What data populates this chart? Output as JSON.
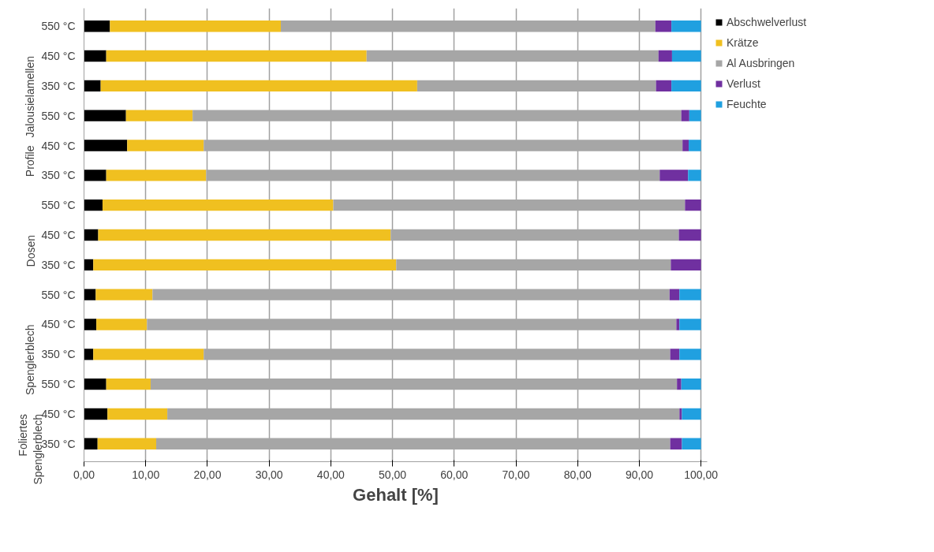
{
  "chart_data": {
    "type": "bar",
    "orientation": "horizontal",
    "stacked": true,
    "xlabel": "Gehalt [%]",
    "categories": [
      "550 °C",
      "450 °C",
      "350 °C",
      "550 °C",
      "450 °C",
      "350 °C",
      "550 °C",
      "450 °C",
      "350 °C",
      "550 °C",
      "450 °C",
      "350 °C",
      "550 °C",
      "450 °C",
      "350 °C"
    ],
    "annotations": [
      "Jalousielamellen",
      "Profile",
      "Dosen",
      "Spenglerblech",
      "Foliertes Spenglerblech"
    ],
    "series": [
      {
        "name": "Abschwelverlust",
        "color": "#000000",
        "values": [
          4.2,
          3.6,
          2.7,
          6.8,
          7.0,
          3.6,
          3.0,
          2.3,
          1.5,
          1.9,
          2.0,
          1.5,
          3.6,
          3.8,
          2.2
        ]
      },
      {
        "name": "Krätze",
        "color": "#f0c020",
        "values": [
          27.7,
          42.2,
          51.3,
          10.8,
          12.4,
          16.2,
          37.4,
          47.4,
          49.1,
          9.2,
          8.2,
          17.9,
          7.2,
          9.7,
          9.5
        ]
      },
      {
        "name": "Al Ausbringen",
        "color": "#a6a6a6",
        "values": [
          60.7,
          47.3,
          38.7,
          79.2,
          77.6,
          73.5,
          57.0,
          46.7,
          44.5,
          83.8,
          85.8,
          75.6,
          85.3,
          83.0,
          83.3
        ]
      },
      {
        "name": "Verlust",
        "color": "#7030a0",
        "values": [
          2.6,
          2.2,
          2.5,
          1.3,
          1.0,
          4.6,
          2.6,
          3.6,
          4.9,
          1.6,
          0.5,
          1.5,
          0.7,
          0.4,
          1.9
        ]
      },
      {
        "name": "Feuchte",
        "color": "#20a0e0",
        "values": [
          4.8,
          4.7,
          4.8,
          1.9,
          2.0,
          2.1,
          0,
          0,
          0,
          3.5,
          3.5,
          3.5,
          3.2,
          3.1,
          3.1
        ]
      }
    ],
    "xlim": [
      0,
      101
    ],
    "xticks": [
      {
        "value": 0,
        "label": "0,00"
      },
      {
        "value": 10,
        "label": "10,00"
      },
      {
        "value": 20,
        "label": "20,00"
      },
      {
        "value": 30,
        "label": "30,00"
      },
      {
        "value": 40,
        "label": "40,00"
      },
      {
        "value": 50,
        "label": "50,00"
      },
      {
        "value": 60,
        "label": "60,00"
      },
      {
        "value": 70,
        "label": "70,00"
      },
      {
        "value": 80,
        "label": "80,00"
      },
      {
        "value": 90,
        "label": "90,00"
      },
      {
        "value": 100,
        "label": "100,00"
      }
    ],
    "grid": "x",
    "legend": "top right"
  }
}
